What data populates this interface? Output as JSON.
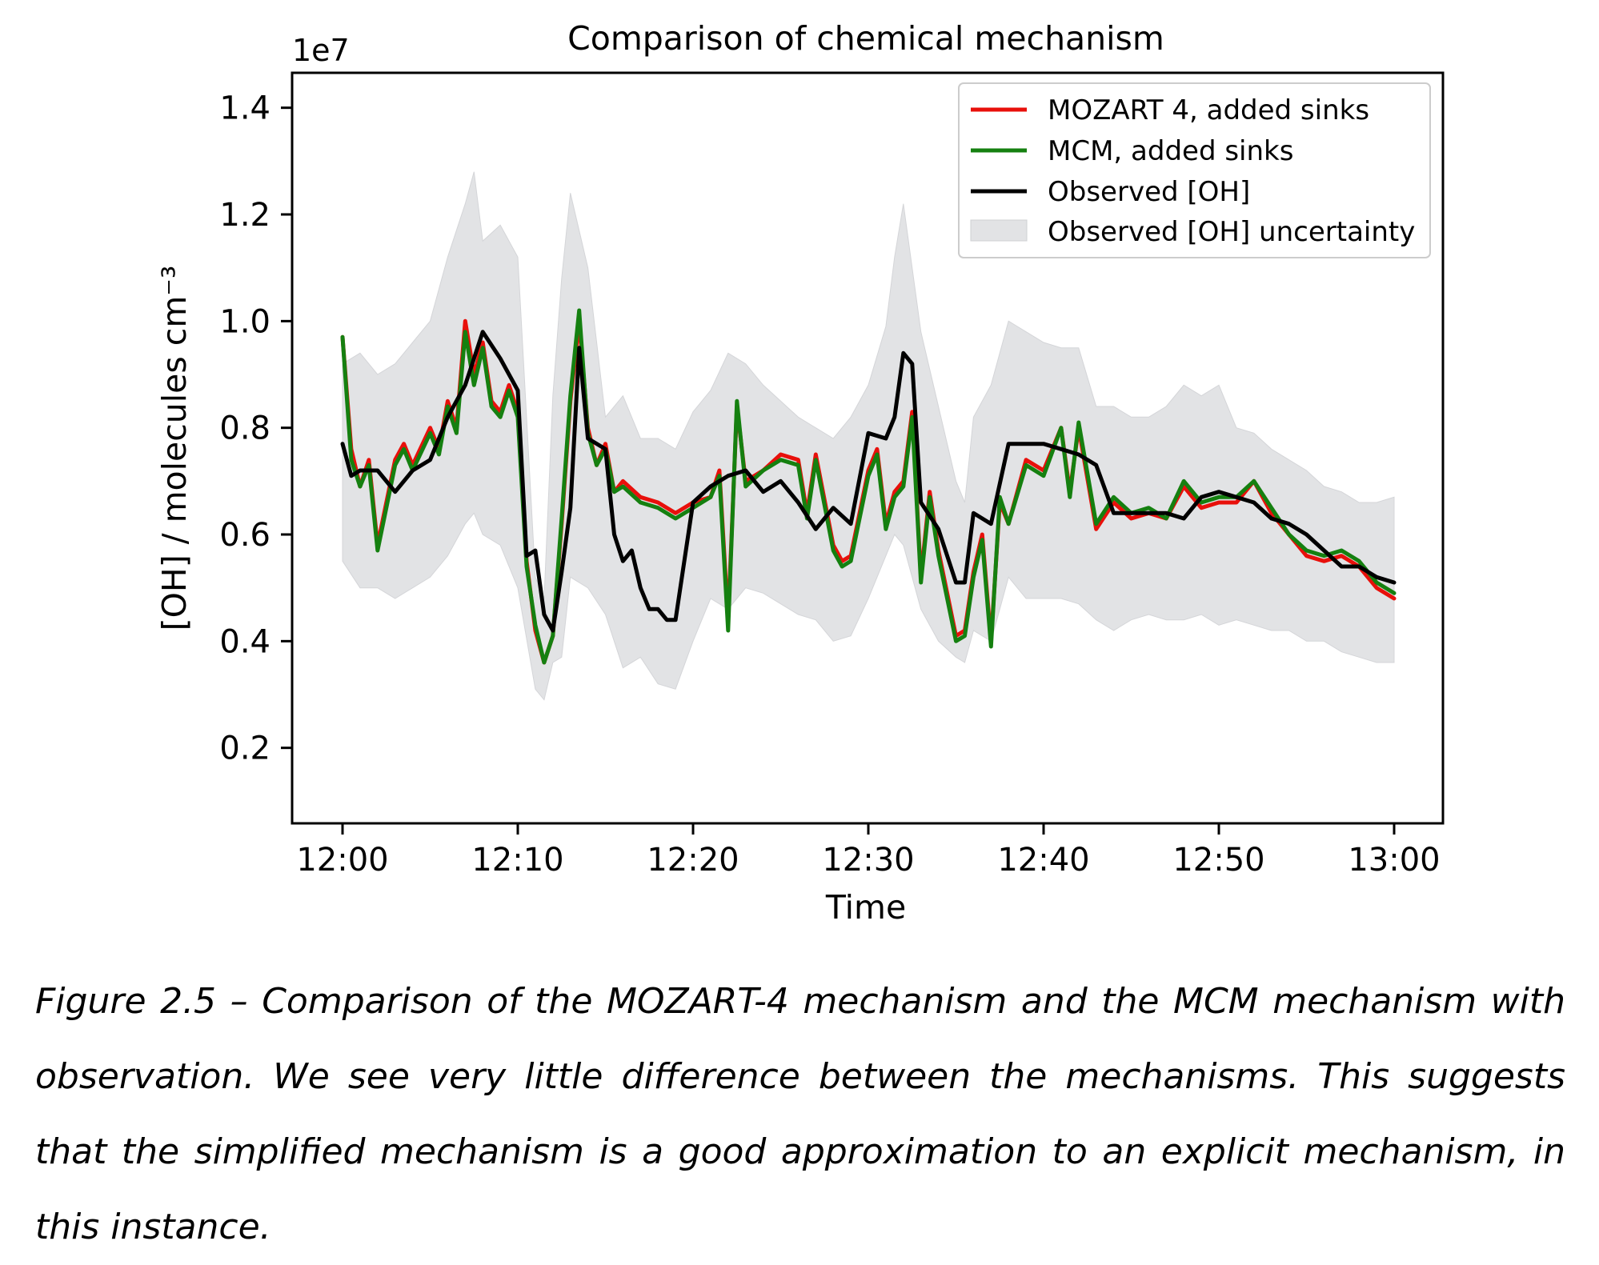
{
  "figure": {
    "caption": "Figure 2.5 – Comparison of the MOZART-4 mechanism and the MCM mechanism with observation. We see very little difference between the mechanisms. This suggests that the simplified mechanism is a good approximation to an explicit mechanism, in this instance."
  },
  "chart_data": {
    "type": "line",
    "title": "Comparison of chemical mechanism",
    "xlabel": "Time",
    "ylabel": "[OH] / molecules cm⁻³",
    "y_offset_label": "1e7",
    "x_tick_labels": [
      "12:00",
      "12:10",
      "12:20",
      "12:30",
      "12:40",
      "12:50",
      "13:00"
    ],
    "x_ticks_minutes": [
      0,
      10,
      20,
      30,
      40,
      50,
      60
    ],
    "y_tick_labels": [
      "0.2",
      "0.4",
      "0.6",
      "0.8",
      "1.0",
      "1.2",
      "1.4"
    ],
    "y_ticks": [
      0.2,
      0.4,
      0.6,
      0.8,
      1.0,
      1.2,
      1.4
    ],
    "xlim": [
      "11:57",
      "13:03"
    ],
    "ylim": [
      0.1,
      1.45
    ],
    "grid": false,
    "legend_position": "top-right",
    "colors": {
      "mozart": "#e8100b",
      "mcm": "#158010",
      "observed": "#000000",
      "uncertainty": "#e2e3e5"
    },
    "series": [
      {
        "name": "MOZART 4, added sinks",
        "x": [
          "12:00",
          "12:00:30",
          "12:01",
          "12:01:30",
          "12:02",
          "12:03",
          "12:03:30",
          "12:04",
          "12:05",
          "12:05:30",
          "12:06",
          "12:06:30",
          "12:07",
          "12:07:30",
          "12:08",
          "12:08:30",
          "12:09",
          "12:09:30",
          "12:10",
          "12:10:30",
          "12:11",
          "12:11:30",
          "12:12",
          "12:12:30",
          "12:13",
          "12:13:30",
          "12:14",
          "12:14:30",
          "12:15",
          "12:15:30",
          "12:16",
          "12:17",
          "12:18",
          "12:19",
          "12:20",
          "12:21",
          "12:21:30",
          "12:22",
          "12:22:30",
          "12:23",
          "12:24",
          "12:25",
          "12:26",
          "12:26:30",
          "12:27",
          "12:28",
          "12:28:30",
          "12:29",
          "12:30",
          "12:30:30",
          "12:31",
          "12:31:30",
          "12:32",
          "12:32:30",
          "12:33",
          "12:33:30",
          "12:34",
          "12:35",
          "12:35:30",
          "12:36",
          "12:36:30",
          "12:37",
          "12:37:30",
          "12:38",
          "12:39",
          "12:40",
          "12:41",
          "12:41:30",
          "12:42",
          "12:43",
          "12:44",
          "12:45",
          "12:46",
          "12:47",
          "12:48",
          "12:49",
          "12:50",
          "12:51",
          "12:52",
          "12:53",
          "12:54",
          "12:55",
          "12:56",
          "12:57",
          "12:58",
          "12:59",
          "13:00"
        ],
        "y": [
          0.97,
          0.76,
          0.69,
          0.74,
          0.58,
          0.74,
          0.77,
          0.73,
          0.8,
          0.76,
          0.85,
          0.8,
          1.0,
          0.9,
          0.96,
          0.85,
          0.83,
          0.88,
          0.83,
          0.55,
          0.42,
          0.36,
          0.41,
          0.62,
          0.85,
          1.0,
          0.8,
          0.73,
          0.77,
          0.68,
          0.7,
          0.67,
          0.66,
          0.64,
          0.66,
          0.67,
          0.72,
          0.44,
          0.84,
          0.7,
          0.72,
          0.75,
          0.74,
          0.64,
          0.75,
          0.58,
          0.55,
          0.56,
          0.72,
          0.76,
          0.62,
          0.68,
          0.7,
          0.83,
          0.52,
          0.68,
          0.57,
          0.41,
          0.42,
          0.53,
          0.6,
          0.4,
          0.66,
          0.62,
          0.74,
          0.72,
          0.8,
          0.68,
          0.8,
          0.61,
          0.66,
          0.63,
          0.64,
          0.63,
          0.69,
          0.65,
          0.66,
          0.66,
          0.7,
          0.64,
          0.6,
          0.56,
          0.55,
          0.56,
          0.54,
          0.5,
          0.48
        ]
      },
      {
        "name": "MCM, added sinks",
        "x": [
          "12:00",
          "12:00:30",
          "12:01",
          "12:01:30",
          "12:02",
          "12:03",
          "12:03:30",
          "12:04",
          "12:05",
          "12:05:30",
          "12:06",
          "12:06:30",
          "12:07",
          "12:07:30",
          "12:08",
          "12:08:30",
          "12:09",
          "12:09:30",
          "12:10",
          "12:10:30",
          "12:11",
          "12:11:30",
          "12:12",
          "12:12:30",
          "12:13",
          "12:13:30",
          "12:14",
          "12:14:30",
          "12:15",
          "12:15:30",
          "12:16",
          "12:17",
          "12:18",
          "12:19",
          "12:20",
          "12:21",
          "12:21:30",
          "12:22",
          "12:22:30",
          "12:23",
          "12:24",
          "12:25",
          "12:26",
          "12:26:30",
          "12:27",
          "12:28",
          "12:28:30",
          "12:29",
          "12:30",
          "12:30:30",
          "12:31",
          "12:31:30",
          "12:32",
          "12:32:30",
          "12:33",
          "12:33:30",
          "12:34",
          "12:35",
          "12:35:30",
          "12:36",
          "12:36:30",
          "12:37",
          "12:37:30",
          "12:38",
          "12:39",
          "12:40",
          "12:41",
          "12:41:30",
          "12:42",
          "12:43",
          "12:44",
          "12:45",
          "12:46",
          "12:47",
          "12:48",
          "12:49",
          "12:50",
          "12:51",
          "12:52",
          "12:53",
          "12:54",
          "12:55",
          "12:56",
          "12:57",
          "12:58",
          "12:59",
          "13:00"
        ],
        "y": [
          0.97,
          0.74,
          0.69,
          0.73,
          0.57,
          0.73,
          0.76,
          0.72,
          0.79,
          0.75,
          0.84,
          0.79,
          0.98,
          0.88,
          0.95,
          0.84,
          0.82,
          0.87,
          0.82,
          0.54,
          0.43,
          0.36,
          0.41,
          0.63,
          0.86,
          1.02,
          0.79,
          0.73,
          0.76,
          0.68,
          0.69,
          0.66,
          0.65,
          0.63,
          0.65,
          0.67,
          0.71,
          0.42,
          0.85,
          0.69,
          0.72,
          0.74,
          0.73,
          0.63,
          0.74,
          0.57,
          0.54,
          0.55,
          0.71,
          0.75,
          0.61,
          0.67,
          0.69,
          0.82,
          0.51,
          0.67,
          0.56,
          0.4,
          0.41,
          0.52,
          0.59,
          0.39,
          0.67,
          0.62,
          0.73,
          0.71,
          0.8,
          0.67,
          0.81,
          0.62,
          0.67,
          0.64,
          0.65,
          0.63,
          0.7,
          0.66,
          0.67,
          0.67,
          0.7,
          0.65,
          0.6,
          0.57,
          0.56,
          0.57,
          0.55,
          0.51,
          0.49
        ]
      },
      {
        "name": "Observed [OH]",
        "x": [
          "12:00",
          "12:00:30",
          "12:01",
          "12:02",
          "12:03",
          "12:04",
          "12:05",
          "12:06",
          "12:07",
          "12:07:30",
          "12:08",
          "12:09",
          "12:10",
          "12:10:30",
          "12:11",
          "12:11:30",
          "12:12",
          "12:12:30",
          "12:13",
          "12:13:30",
          "12:14",
          "12:15",
          "12:15:30",
          "12:16",
          "12:16:30",
          "12:17",
          "12:17:30",
          "12:18",
          "12:18:30",
          "12:19",
          "12:20",
          "12:21",
          "12:22",
          "12:23",
          "12:24",
          "12:25",
          "12:26",
          "12:27",
          "12:28",
          "12:29",
          "12:30",
          "12:31",
          "12:31:30",
          "12:32",
          "12:32:30",
          "12:33",
          "12:34",
          "12:35",
          "12:35:30",
          "12:36",
          "12:37",
          "12:38",
          "12:39",
          "12:40",
          "12:41",
          "12:42",
          "12:43",
          "12:44",
          "12:45",
          "12:46",
          "12:47",
          "12:48",
          "12:49",
          "12:50",
          "12:51",
          "12:52",
          "12:53",
          "12:54",
          "12:55",
          "12:56",
          "12:57",
          "12:58",
          "12:59",
          "13:00"
        ],
        "y": [
          0.77,
          0.71,
          0.72,
          0.72,
          0.68,
          0.72,
          0.74,
          0.82,
          0.88,
          0.93,
          0.98,
          0.93,
          0.87,
          0.56,
          0.57,
          0.45,
          0.42,
          0.53,
          0.65,
          0.95,
          0.78,
          0.76,
          0.6,
          0.55,
          0.57,
          0.5,
          0.46,
          0.46,
          0.44,
          0.44,
          0.66,
          0.69,
          0.71,
          0.72,
          0.68,
          0.7,
          0.66,
          0.61,
          0.65,
          0.62,
          0.79,
          0.78,
          0.82,
          0.94,
          0.92,
          0.66,
          0.61,
          0.51,
          0.51,
          0.64,
          0.62,
          0.77,
          0.77,
          0.77,
          0.76,
          0.75,
          0.73,
          0.64,
          0.64,
          0.64,
          0.64,
          0.63,
          0.67,
          0.68,
          0.67,
          0.66,
          0.63,
          0.62,
          0.6,
          0.57,
          0.54,
          0.54,
          0.52,
          0.51
        ]
      },
      {
        "name": "Observed [OH] uncertainty",
        "x": [
          "12:00",
          "12:01",
          "12:02",
          "12:03",
          "12:04",
          "12:05",
          "12:06",
          "12:07",
          "12:07:30",
          "12:08",
          "12:09",
          "12:10",
          "12:11",
          "12:11:30",
          "12:12",
          "12:12:30",
          "12:13",
          "12:14",
          "12:15",
          "12:16",
          "12:17",
          "12:18",
          "12:19",
          "12:20",
          "12:21",
          "12:22",
          "12:23",
          "12:24",
          "12:25",
          "12:26",
          "12:27",
          "12:28",
          "12:29",
          "12:30",
          "12:31",
          "12:31:30",
          "12:32",
          "12:33",
          "12:34",
          "12:35",
          "12:35:30",
          "12:36",
          "12:37",
          "12:38",
          "12:39",
          "12:40",
          "12:41",
          "12:42",
          "12:43",
          "12:44",
          "12:45",
          "12:46",
          "12:47",
          "12:48",
          "12:49",
          "12:50",
          "12:51",
          "12:52",
          "12:53",
          "12:54",
          "12:55",
          "12:56",
          "12:57",
          "12:58",
          "12:59",
          "13:00"
        ],
        "upper": [
          0.92,
          0.94,
          0.9,
          0.92,
          0.96,
          1.0,
          1.12,
          1.22,
          1.28,
          1.15,
          1.18,
          1.12,
          0.52,
          0.48,
          0.86,
          1.08,
          1.24,
          1.1,
          0.82,
          0.86,
          0.78,
          0.78,
          0.76,
          0.83,
          0.87,
          0.94,
          0.92,
          0.88,
          0.85,
          0.82,
          0.8,
          0.78,
          0.82,
          0.88,
          0.99,
          1.12,
          1.22,
          0.98,
          0.84,
          0.7,
          0.66,
          0.82,
          0.88,
          1.0,
          0.98,
          0.96,
          0.95,
          0.95,
          0.84,
          0.84,
          0.82,
          0.82,
          0.84,
          0.88,
          0.86,
          0.88,
          0.8,
          0.79,
          0.76,
          0.74,
          0.72,
          0.69,
          0.68,
          0.66,
          0.66,
          0.67
        ],
        "lower": [
          0.55,
          0.5,
          0.5,
          0.48,
          0.5,
          0.52,
          0.56,
          0.62,
          0.64,
          0.6,
          0.58,
          0.5,
          0.31,
          0.29,
          0.36,
          0.37,
          0.52,
          0.5,
          0.45,
          0.35,
          0.37,
          0.32,
          0.31,
          0.4,
          0.48,
          0.46,
          0.5,
          0.49,
          0.47,
          0.45,
          0.44,
          0.4,
          0.41,
          0.48,
          0.56,
          0.6,
          0.58,
          0.46,
          0.4,
          0.37,
          0.36,
          0.42,
          0.4,
          0.52,
          0.48,
          0.48,
          0.48,
          0.47,
          0.44,
          0.42,
          0.44,
          0.45,
          0.44,
          0.44,
          0.45,
          0.43,
          0.44,
          0.43,
          0.42,
          0.42,
          0.4,
          0.4,
          0.38,
          0.37,
          0.36,
          0.36
        ]
      }
    ]
  }
}
